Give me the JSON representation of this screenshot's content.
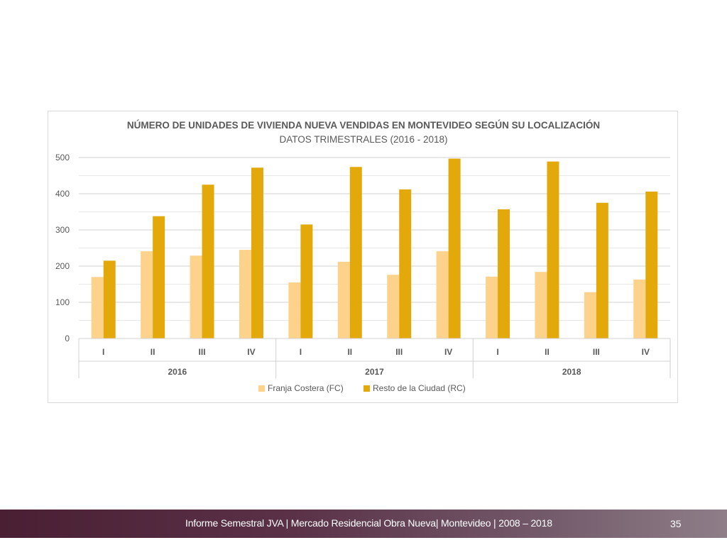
{
  "chart_data": {
    "type": "bar",
    "title": "NÚMERO DE UNIDADES DE VIVIENDA NUEVA VENDIDAS EN MONTEVIDEO SEGÚN SU LOCALIZACIÓN",
    "subtitle": "DATOS TRIMESTRALES (2016 - 2018)",
    "categories": [
      "I",
      "II",
      "III",
      "IV",
      "I",
      "II",
      "III",
      "IV",
      "I",
      "II",
      "III",
      "IV"
    ],
    "groups": [
      {
        "label": "2016",
        "span": 4
      },
      {
        "label": "2017",
        "span": 4
      },
      {
        "label": "2018",
        "span": 4
      }
    ],
    "series": [
      {
        "name": "Franja Costera (FC)",
        "color": "#fdd28b",
        "values": [
          170,
          241,
          229,
          245,
          155,
          212,
          176,
          241,
          171,
          184,
          128,
          163
        ]
      },
      {
        "name": "Resto de la Ciudad (RC)",
        "color": "#e3a90b",
        "values": [
          215,
          338,
          425,
          472,
          315,
          474,
          412,
          497,
          357,
          489,
          375,
          406
        ]
      }
    ],
    "ylim": [
      0,
      500
    ],
    "yticks": [
      0,
      100,
      200,
      300,
      400,
      500
    ],
    "grid": true,
    "legend_position": "bottom"
  },
  "footer": {
    "text": "Informe Semestral JVA | Mercado Residencial Obra Nueva| Montevideo | 2008 – 2018",
    "page_number": "35"
  }
}
